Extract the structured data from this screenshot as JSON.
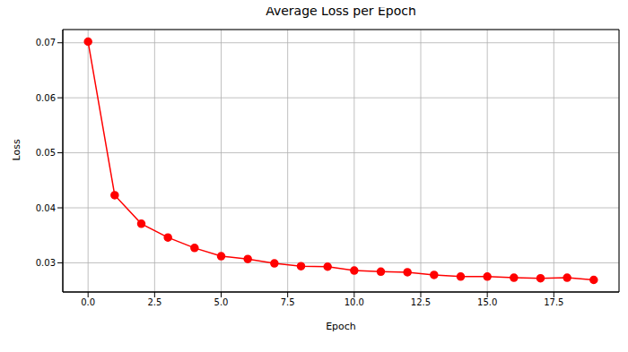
{
  "chart_data": {
    "type": "line",
    "title": "Average Loss per Epoch",
    "x_label": "Epoch",
    "y_label": "Loss",
    "x": [
      0,
      1,
      2,
      3,
      4,
      5,
      6,
      7,
      8,
      9,
      10,
      11,
      12,
      13,
      14,
      15,
      16,
      17,
      18,
      19
    ],
    "values": [
      0.0702,
      0.0423,
      0.0371,
      0.0346,
      0.0327,
      0.0312,
      0.0307,
      0.0299,
      0.0294,
      0.0293,
      0.0286,
      0.0284,
      0.0283,
      0.0278,
      0.0275,
      0.0275,
      0.0273,
      0.0272,
      0.0273,
      0.0269
    ],
    "color": "#ff0000",
    "marker": "o",
    "line_style": "solid",
    "xlim": [
      -0.95,
      19.95
    ],
    "xticks": [
      {
        "value": 0,
        "label": "0.0"
      },
      2.5,
      {
        "value": 5,
        "label": "5.0"
      },
      7.5,
      {
        "value": 10,
        "label": "10.0"
      },
      12.5,
      {
        "value": 15,
        "label": "15.0"
      },
      17.5
    ],
    "ylim": [
      0.0247,
      0.0724
    ],
    "yticks": [
      0.03,
      0.04,
      0.05,
      0.06,
      0.07
    ],
    "grid": true
  }
}
